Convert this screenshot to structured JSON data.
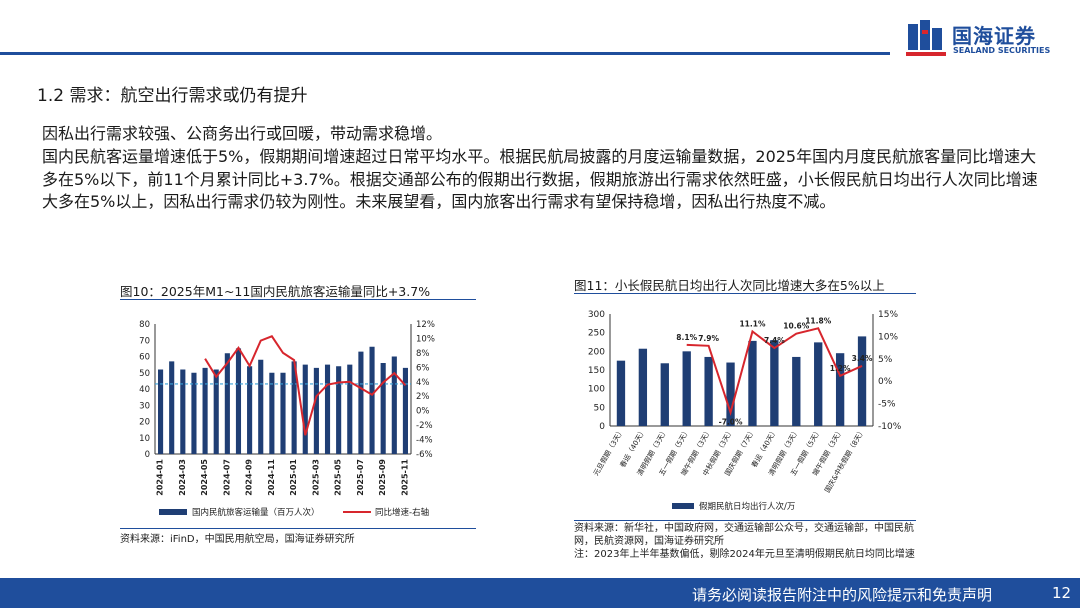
{
  "header": {
    "logo_cn": "国海证券",
    "logo_en": "SEALAND SECURITIES",
    "brand_color": "#1f4e9c"
  },
  "section_title": "1.2 需求：航空出行需求或仍有提升",
  "para1": "因私出行需求较强、公商务出行或回暖，带动需求稳增。",
  "para2": "国内民航客运量增速低于5%，假期期间增速超过日常平均水平。根据民航局披露的月度运输量数据，2025年国内月度民航旅客量同比增速大多在5%以下，前11个月累计同比+3.7%。根据交通部公布的假期出行数据，假期旅游出行需求依然旺盛，小长假民航日均出行人次同比增速大多在5%以上，因私出行需求仍较为刚性。未来展望看，国内旅客出行需求有望保持稳增，因私出行热度不减。",
  "fig10": {
    "title": "图10：2025年M1~11国内民航旅客运输量同比+3.7%",
    "source": "资料来源：iFinD，中国民用航空局，国海证券研究所",
    "left_ticks": [
      "0",
      "10",
      "20",
      "30",
      "40",
      "50",
      "60",
      "70",
      "80"
    ],
    "right_ticks": [
      "-6%",
      "-4%",
      "-2%",
      "0%",
      "2%",
      "4%",
      "6%",
      "8%",
      "10%",
      "12%"
    ],
    "x_labels": [
      "2024-01",
      "2024-03",
      "2024-05",
      "2024-07",
      "2024-09",
      "2024-11",
      "2025-01",
      "2025-03",
      "2025-05",
      "2025-07",
      "2025-09",
      "2025-11"
    ],
    "legend_bar": "国内民航旅客运输量（百万人次）",
    "legend_line": "同比增速-右轴"
  },
  "fig11": {
    "title": "图11：小长假民航日均出行人次同比增速大多在5%以上",
    "source_lines": [
      "资料来源：新华社，中国政府网，交通运输部公众号，交通运输部，中国民航",
      "网，民航资源网，国海证券研究所",
      "注：2023年上半年基数偏低，剔除2024年元旦至清明假期民航日均同比增速"
    ],
    "left_ticks": [
      "0",
      "50",
      "100",
      "150",
      "200",
      "250",
      "300"
    ],
    "right_ticks": [
      "-10%",
      "-5%",
      "0%",
      "5%",
      "10%",
      "15%"
    ],
    "categories": [
      "元旦假期（3天）",
      "春运（40天）",
      "清明假期（3天）",
      "五一假期（5天）",
      "端午假期（3天）",
      "中秋假期（3天）",
      "国庆假期（7天）",
      "春运（40天）",
      "清明假期（3天）",
      "五一假期（5天）",
      "端午假期（3天）",
      "国庆&中秋假期（8天）"
    ],
    "growth_labels": [
      "",
      "",
      "",
      "8.1%",
      "7.9%",
      "-7.0%",
      "11.1%",
      "7.4%",
      "10.6%",
      "11.8%",
      "1.2%",
      "3.4%"
    ],
    "legend_bar": "假期民航日均出行人次/万"
  },
  "chart_data": [
    {
      "type": "bar",
      "title": "图10：2025年M1~11国内民航旅客运输量同比+3.7%",
      "categories": [
        "2024-01",
        "2024-02",
        "2024-03",
        "2024-04",
        "2024-05",
        "2024-06",
        "2024-07",
        "2024-08",
        "2024-09",
        "2024-10",
        "2024-11",
        "2024-12",
        "2025-01",
        "2025-02",
        "2025-03",
        "2025-04",
        "2025-05",
        "2025-06",
        "2025-07",
        "2025-08",
        "2025-09",
        "2025-10",
        "2025-11"
      ],
      "series": [
        {
          "name": "国内民航旅客运输量（百万人次）",
          "axis": "left",
          "type": "bar",
          "values": [
            52,
            57,
            52,
            50,
            53,
            52,
            62,
            65,
            54,
            58,
            50,
            50,
            57,
            55,
            53,
            55,
            54,
            55,
            63,
            66,
            56,
            60,
            53
          ]
        },
        {
          "name": "同比增速-右轴",
          "axis": "right",
          "type": "line",
          "values": [
            null,
            null,
            null,
            null,
            7.2,
            4.7,
            6.6,
            8.7,
            6.2,
            9.7,
            10.3,
            8.0,
            7.0,
            -3.4,
            2.0,
            3.6,
            3.9,
            4.0,
            3.1,
            2.2,
            3.9,
            5.2,
            3.5
          ]
        }
      ],
      "reference_line": {
        "axis": "right",
        "value": 3.7
      },
      "ylim_left": [
        0,
        80
      ],
      "ylim_right": [
        -6,
        12
      ],
      "legend": "bottom",
      "grid": false
    },
    {
      "type": "bar",
      "title": "图11：小长假民航日均出行人次同比增速大多在5%以上",
      "categories": [
        "元旦假期（3天）",
        "春运（40天）",
        "清明假期（3天）",
        "五一假期（5天）",
        "端午假期（3天）",
        "中秋假期（3天）",
        "国庆假期（7天）",
        "春运（40天）",
        "清明假期（3天）",
        "五一假期（5天）",
        "端午假期（3天）",
        "国庆&中秋假期（8天）"
      ],
      "series": [
        {
          "name": "假期民航日均出行人次/万",
          "axis": "left",
          "type": "bar",
          "values": [
            175,
            207,
            168,
            200,
            185,
            170,
            228,
            230,
            185,
            224,
            195,
            240
          ]
        },
        {
          "name": "",
          "axis": "right",
          "type": "line",
          "values": [
            null,
            null,
            null,
            8.1,
            7.9,
            -7.0,
            11.1,
            7.4,
            10.6,
            11.8,
            1.2,
            3.4
          ]
        }
      ],
      "ylim_left": [
        0,
        300
      ],
      "ylim_right": [
        -10,
        15
      ],
      "legend": "bottom",
      "grid": false
    }
  ]
}
